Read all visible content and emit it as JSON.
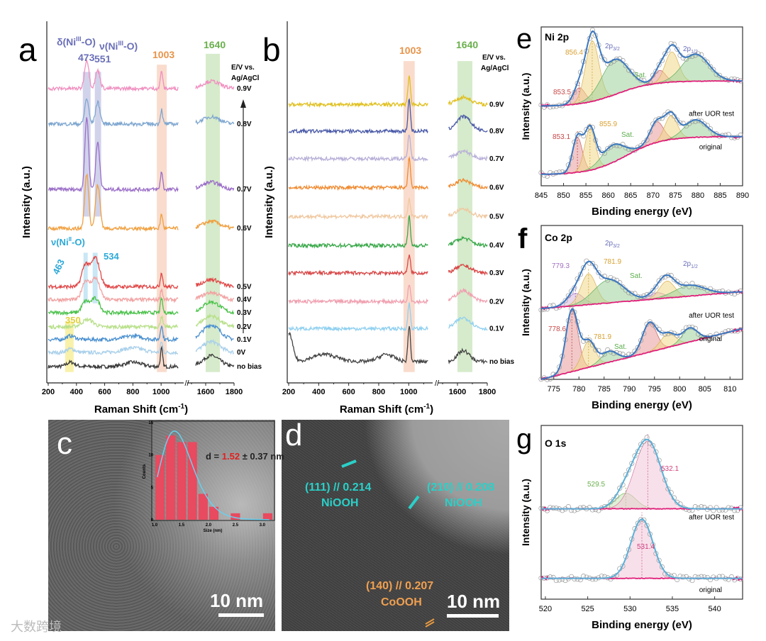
{
  "panel_labels": {
    "a": "a",
    "b": "b",
    "c": "c",
    "d": "d",
    "e": "e",
    "f": "f",
    "g": "g"
  },
  "watermark": "大数跨境",
  "chart_data": [
    {
      "panel": "a",
      "type": "line",
      "xlabel": "Raman Shift (cm",
      "xlabel_sup": "-1",
      "xlabel_end": ")",
      "ylabel": "Intensity (a.u.)",
      "xticks": [
        200,
        400,
        600,
        800,
        1000,
        1600,
        1800
      ],
      "axis_break": [
        1150,
        1500
      ],
      "legend_title": [
        "E/V vs.",
        "Ag/AgCl"
      ],
      "annotations": {
        "delta_label": "δ(Ni",
        "delta_sup": "III",
        "delta_end": "-O)",
        "nu3_label": "ν(Ni",
        "nu3_sup": "III",
        "nu3_end": "-O)",
        "nu2_label": "ν(Ni",
        "nu2_sup": "II",
        "nu2_end": "-O)",
        "p473": "473",
        "p551": "551",
        "p1003": "1003",
        "p1640": "1640",
        "p463": "463",
        "p534": "534",
        "p350": "350"
      },
      "bands": [
        {
          "range": [
            445,
            500
          ],
          "yrange": [
            46,
            86
          ],
          "color": "#c9cbe8"
        },
        {
          "range": [
            530,
            575
          ],
          "yrange": [
            46,
            86
          ],
          "color": "#c9cbe8"
        },
        {
          "range": [
            450,
            480
          ],
          "yrange": [
            22,
            36
          ],
          "color": "#bfe3f3"
        },
        {
          "range": [
            515,
            550
          ],
          "yrange": [
            22,
            36
          ],
          "color": "#bfe3f3"
        },
        {
          "range": [
            970,
            1040
          ],
          "yrange": [
            3,
            88
          ],
          "color": "#f8d6c4"
        },
        {
          "range": [
            1600,
            1700
          ],
          "yrange": [
            3,
            91
          ],
          "color": "#cfe7c2"
        },
        {
          "range": [
            320,
            380
          ],
          "yrange": [
            3,
            17
          ],
          "color": "#f7ef9a"
        }
      ],
      "series": [
        {
          "name": "no bias",
          "color": "#3a3a3a",
          "offset": 4.5,
          "peaks": [
            [
              1003,
              5,
              8
            ],
            [
              360,
              1.2,
              30
            ],
            [
              800,
              1.2,
              60
            ],
            [
              1640,
              3,
              60
            ]
          ]
        },
        {
          "name": "0V",
          "color": "#a9d0ea",
          "offset": 8.4,
          "peaks": [
            [
              1003,
              3,
              8
            ],
            [
              360,
              1,
              30
            ],
            [
              800,
              1.3,
              70
            ],
            [
              1640,
              3,
              60
            ]
          ]
        },
        {
          "name": "0.1V",
          "color": "#4a90d0",
          "offset": 12,
          "peaks": [
            [
              1003,
              4,
              8
            ],
            [
              360,
              1,
              30
            ],
            [
              800,
              1,
              60
            ],
            [
              1640,
              4,
              60
            ]
          ]
        },
        {
          "name": "0.2V",
          "color": "#b8e08a",
          "offset": 15.5,
          "peaks": [
            [
              1003,
              3,
              8
            ],
            [
              480,
              2,
              40
            ],
            [
              1640,
              3,
              60
            ]
          ]
        },
        {
          "name": "0.3V",
          "color": "#4cc24c",
          "offset": 19.4,
          "peaks": [
            [
              1003,
              4,
              8
            ],
            [
              463,
              3,
              25
            ],
            [
              534,
              4,
              30
            ],
            [
              1640,
              3,
              60
            ]
          ]
        },
        {
          "name": "0.4V",
          "color": "#f2a2a2",
          "offset": 23,
          "peaks": [
            [
              1003,
              3,
              8
            ],
            [
              463,
              5,
              25
            ],
            [
              534,
              6,
              30
            ],
            [
              1640,
              2,
              60
            ]
          ]
        },
        {
          "name": "0.5V",
          "color": "#e04848",
          "offset": 26.6,
          "peaks": [
            [
              1003,
              4,
              8
            ],
            [
              463,
              6,
              25
            ],
            [
              534,
              8,
              30
            ],
            [
              1640,
              2,
              60
            ]
          ]
        },
        {
          "name": "0.6V",
          "color": "#f0a040",
          "offset": 42.7,
          "peaks": [
            [
              473,
              15,
              14
            ],
            [
              551,
              12,
              16
            ],
            [
              1003,
              4,
              8
            ],
            [
              1640,
              2,
              60
            ]
          ]
        },
        {
          "name": "0.7V",
          "color": "#9b6fc8",
          "offset": 53.5,
          "peaks": [
            [
              473,
              20,
              13
            ],
            [
              551,
              13,
              14
            ],
            [
              1003,
              5,
              8
            ],
            [
              1640,
              2,
              60
            ]
          ]
        },
        {
          "name": "0.8V",
          "color": "#7fa7d0",
          "offset": 71.6,
          "peaks": [
            [
              473,
              7,
              14
            ],
            [
              551,
              6,
              16
            ],
            [
              1003,
              4,
              8
            ],
            [
              1640,
              2,
              60
            ]
          ]
        },
        {
          "name": "0.9V",
          "color": "#f090c0",
          "offset": 81.4,
          "peaks": [
            [
              473,
              8,
              15
            ],
            [
              551,
              5,
              16
            ],
            [
              1003,
              5,
              8
            ],
            [
              1640,
              2,
              60
            ]
          ]
        }
      ]
    },
    {
      "panel": "b",
      "type": "line",
      "xlabel": "Raman Shift (cm",
      "xlabel_sup": "-1",
      "xlabel_end": ")",
      "ylabel": "Intensity (a.u.)",
      "xticks": [
        200,
        400,
        600,
        800,
        1000,
        1600,
        1800
      ],
      "axis_break": [
        1150,
        1500
      ],
      "legend_title": [
        "E/V vs.",
        "Ag/AgCl"
      ],
      "annotations": {
        "p1003": "1003",
        "p1640": "1640"
      },
      "bands": [
        {
          "range": [
            965,
            1040
          ],
          "yrange": [
            3,
            89
          ],
          "color": "#f8d6c4"
        },
        {
          "range": [
            1600,
            1700
          ],
          "yrange": [
            3,
            89
          ],
          "color": "#cfe7c2"
        }
      ],
      "series": [
        {
          "name": "no bias",
          "color": "#444444",
          "offset": 5.9,
          "peaks": [
            [
              200,
              8,
              25
            ],
            [
              440,
              2,
              80
            ],
            [
              850,
              2,
              50
            ],
            [
              1003,
              10,
              8
            ],
            [
              1640,
              3,
              40
            ]
          ]
        },
        {
          "name": "0.1V",
          "color": "#90d0f0",
          "offset": 15,
          "peaks": [
            [
              1003,
              7,
              8
            ],
            [
              1640,
              3,
              50
            ]
          ]
        },
        {
          "name": "0.2V",
          "color": "#f0a0b0",
          "offset": 22.5,
          "peaks": [
            [
              1003,
              5,
              8
            ],
            [
              1640,
              3,
              50
            ]
          ]
        },
        {
          "name": "0.3V",
          "color": "#d84848",
          "offset": 30.4,
          "peaks": [
            [
              1003,
              5,
              8
            ],
            [
              1640,
              2,
              50
            ]
          ]
        },
        {
          "name": "0.4V",
          "color": "#3aa84a",
          "offset": 38,
          "peaks": [
            [
              1003,
              8,
              8
            ],
            [
              1640,
              2,
              50
            ]
          ]
        },
        {
          "name": "0.5V",
          "color": "#f0c8a0",
          "offset": 46,
          "peaks": [
            [
              1003,
              5,
              8
            ],
            [
              1640,
              2,
              50
            ]
          ]
        },
        {
          "name": "0.6V",
          "color": "#f08a30",
          "offset": 54,
          "peaks": [
            [
              1003,
              8,
              8
            ],
            [
              1640,
              2,
              50
            ]
          ]
        },
        {
          "name": "0.7V",
          "color": "#b8b0d8",
          "offset": 62,
          "peaks": [
            [
              1003,
              7,
              8
            ],
            [
              1640,
              2,
              50
            ]
          ]
        },
        {
          "name": "0.8V",
          "color": "#4a5aa8",
          "offset": 69.6,
          "peaks": [
            [
              1003,
              9,
              8
            ],
            [
              1640,
              4,
              50
            ]
          ]
        },
        {
          "name": "0.9V",
          "color": "#e0c020",
          "offset": 77,
          "peaks": [
            [
              1003,
              8,
              8
            ],
            [
              1640,
              2,
              50
            ]
          ]
        }
      ]
    },
    {
      "panel": "c_inset",
      "type": "bar",
      "xlabel": "Size (nm)",
      "ylabel": "Counts",
      "xlim": [
        1.0,
        3.2
      ],
      "ylim": [
        0,
        15
      ],
      "xticks": [
        "1.0",
        "1.5",
        "2.0",
        "2.5",
        "3.0"
      ],
      "yticks": [
        "0",
        "5",
        "10",
        "15"
      ],
      "bins": [
        1.0,
        1.2,
        1.4,
        1.6,
        1.8,
        2.0,
        2.4,
        3.0
      ],
      "bin_width": 0.2,
      "values": [
        10,
        13,
        12,
        12,
        4,
        2,
        1,
        1
      ],
      "fit": {
        "type": "lognormal",
        "mean": 1.52,
        "sd": 0.37
      },
      "annotation": {
        "prefix": "d = ",
        "value": "1.52",
        "suffix": " ± 0.37 nm"
      }
    },
    {
      "panel": "e",
      "type": "line",
      "title": "Ni 2p",
      "xlabel": "Binding energy (eV)",
      "ylabel": "Intensity (a.u.)",
      "xlim": [
        845,
        890
      ],
      "xticks": [
        845,
        850,
        855,
        860,
        865,
        870,
        875,
        880,
        885,
        890
      ],
      "labels": {
        "p32": "2p",
        "p32_sub": "3/2",
        "p12": "2p",
        "p12_sub": "1/2",
        "sat1": "Sat.",
        "sat2": "Sat.",
        "a1": "856.4",
        "a2": "853.5",
        "o1": "855.9",
        "o2": "853.1"
      },
      "series": [
        {
          "name": "after UOR test",
          "bg": [
            50,
            66
          ],
          "bg_step": 862,
          "components": [
            [
              853.5,
              10,
              1.3,
              "#e89a9a"
            ],
            [
              856.4,
              38,
              1.5,
              "#f3d88a"
            ],
            [
              861.5,
              22,
              3,
              "#9fd19a"
            ],
            [
              871.5,
              8,
              1.3,
              "#e89a9a"
            ],
            [
              874.2,
              19,
              1.5,
              "#f3d88a"
            ],
            [
              879.5,
              17,
              3,
              "#9fd19a"
            ]
          ]
        },
        {
          "name": "original",
          "bg": [
            7,
            31
          ],
          "bg_step": 864,
          "components": [
            [
              853.1,
              22,
              1.1,
              "#e89a9a"
            ],
            [
              855.9,
              26,
              1.2,
              "#f3d88a"
            ],
            [
              861,
              11,
              2.5,
              "#9fd19a"
            ],
            [
              870.8,
              13,
              1.5,
              "#e89a9a"
            ],
            [
              874,
              15,
              1.4,
              "#f3d88a"
            ],
            [
              879.5,
              11,
              2.5,
              "#9fd19a"
            ]
          ]
        }
      ]
    },
    {
      "panel": "f",
      "type": "line",
      "title": "Co 2p",
      "xlabel": "Binding energy (eV)",
      "ylabel": "Intensity (a.u.)",
      "xlim": [
        772.5,
        812.5
      ],
      "xticks": [
        775,
        780,
        785,
        790,
        795,
        800,
        805,
        810
      ],
      "labels": {
        "p32": "2p",
        "p32_sub": "3/2",
        "p12": "2p",
        "p12_sub": "1/2",
        "sat1": "Sat.",
        "sat2": "Sat.",
        "a1": "779.3",
        "a2": "781.9",
        "o1": "778.6",
        "o2": "781.9"
      },
      "series": [
        {
          "name": "after UOR test",
          "bg": [
            46,
            57
          ],
          "bg_step": null,
          "components": [
            [
              779.3,
              8,
              1.6,
              "#d7b6df"
            ],
            [
              781.9,
              20,
              1.5,
              "#f3d88a"
            ],
            [
              786,
              15,
              3,
              "#9fd19a"
            ],
            [
              795.5,
              4,
              1.5,
              "#d7b6df"
            ],
            [
              797.5,
              11,
              1.5,
              "#f3d88a"
            ],
            [
              802,
              7,
              3,
              "#9fd19a"
            ]
          ]
        },
        {
          "name": "original",
          "bg": [
            0,
            33
          ],
          "bg_step": null,
          "components": [
            [
              778.6,
              40,
              1.2,
              "#e89a9a"
            ],
            [
              781.9,
              17,
              1.3,
              "#f3d88a"
            ],
            [
              786,
              7,
              1.6,
              "#9fd19a"
            ],
            [
              794,
              19,
              1.4,
              "#e89a9a"
            ],
            [
              797.7,
              9,
              1.5,
              "#f3d88a"
            ],
            [
              802,
              9,
              1.5,
              "#9fd19a"
            ]
          ]
        }
      ]
    },
    {
      "panel": "g",
      "type": "line",
      "title": "O 1s",
      "xlabel": "Binding energy (eV)",
      "ylabel": "Intensity (a.u.)",
      "xlim": [
        519.5,
        543.3
      ],
      "xticks": [
        520,
        525,
        530,
        535,
        540
      ],
      "labels": {
        "a1": "532.1",
        "a2": "529.5",
        "o1": "531.4"
      },
      "series": [
        {
          "name": "after UOR test",
          "bg": [
            52,
            52
          ],
          "bg_step": null,
          "components": [
            [
              529.5,
              9,
              1.2,
              "#c7e6b3"
            ],
            [
              532.1,
              39,
              1.55,
              "#f2c6d8"
            ]
          ]
        },
        {
          "name": "original",
          "bg": [
            12,
            12
          ],
          "bg_step": null,
          "components": [
            [
              531.4,
              34,
              1.3,
              "#f2c6d8"
            ]
          ]
        }
      ]
    }
  ],
  "tem_d": {
    "l1": "(111) // 0.214",
    "l1b": "NiOOH",
    "l2": "(210) // 0.208",
    "l2b": "NiOOH",
    "l3": "(140) // 0.207",
    "l3b": "CoOOH"
  },
  "scale_bars": {
    "c": "10 nm",
    "d": "10 nm"
  }
}
